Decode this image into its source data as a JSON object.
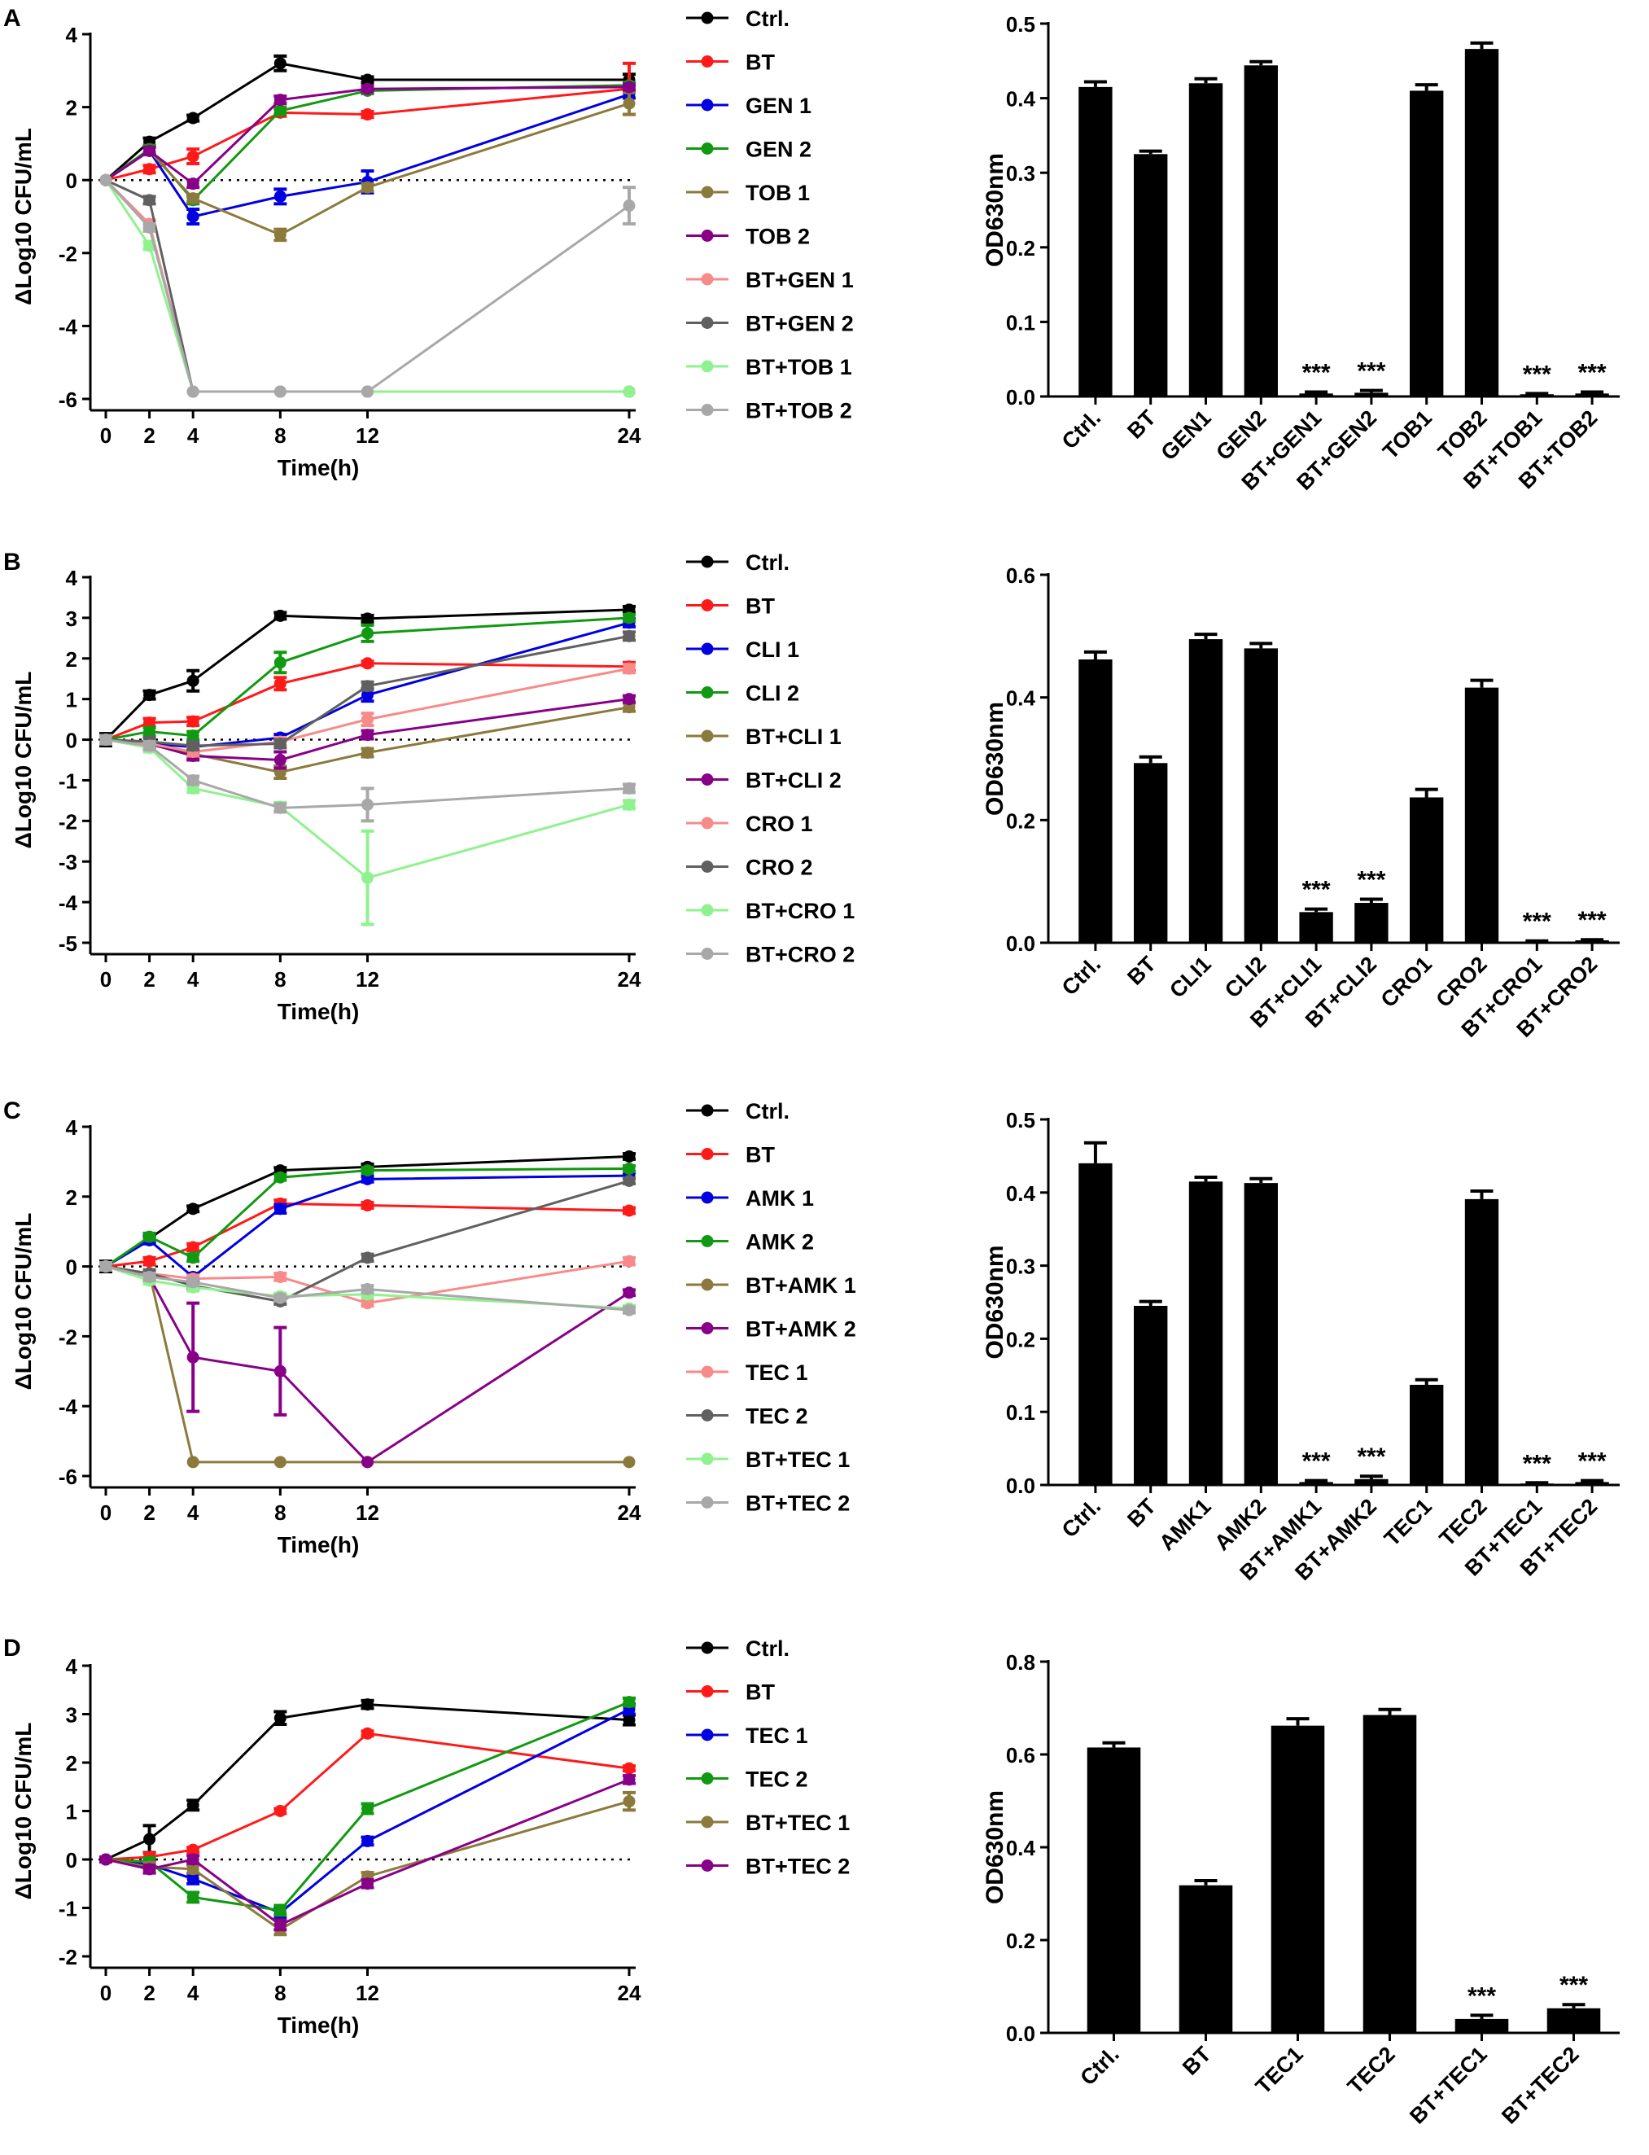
{
  "figure_title": "",
  "chart_data": [
    {
      "panel": "A",
      "type": "line",
      "title": "",
      "xlabel": "Time(h)",
      "ylabel": "ΔLog10 CFU/mL",
      "x": [
        0,
        2,
        4,
        8,
        12,
        24
      ],
      "xticks": [
        0,
        2,
        4,
        8,
        12,
        24
      ],
      "ylim": [
        -6,
        4
      ],
      "yticks": [
        -6,
        -4,
        -2,
        0,
        2,
        4
      ],
      "baseline": 0,
      "grid": false,
      "legend": "right",
      "series": [
        {
          "name": "Ctrl.",
          "color": "#000000",
          "values": [
            0,
            1.05,
            1.7,
            3.2,
            2.75,
            2.75
          ],
          "err": [
            0,
            0.1,
            0.08,
            0.2,
            0.08,
            0.15
          ]
        },
        {
          "name": "BT",
          "color": "#ff1a1a",
          "values": [
            0,
            0.3,
            0.65,
            1.85,
            1.8,
            2.5
          ],
          "err": [
            0,
            0.1,
            0.2,
            0.1,
            0.08,
            0.7
          ]
        },
        {
          "name": "GEN 1",
          "color": "#0000e0",
          "values": [
            0,
            0.8,
            -1.0,
            -0.45,
            -0.05,
            2.35
          ],
          "err": [
            0,
            0.1,
            0.2,
            0.2,
            0.3,
            0.1
          ]
        },
        {
          "name": "GEN 2",
          "color": "#119911",
          "values": [
            0,
            0.85,
            -0.55,
            1.9,
            2.45,
            2.6
          ],
          "err": [
            0,
            0.1,
            0.1,
            0.1,
            0.08,
            0.08
          ]
        },
        {
          "name": "TOB 1",
          "color": "#8b7a3c",
          "values": [
            0,
            0.8,
            -0.5,
            -1.5,
            -0.2,
            2.1
          ],
          "err": [
            0,
            0.1,
            0.1,
            0.15,
            0.1,
            0.3
          ]
        },
        {
          "name": "TOB 2",
          "color": "#880088",
          "values": [
            0,
            0.8,
            -0.1,
            2.2,
            2.5,
            2.55
          ],
          "err": [
            0,
            0.1,
            0.1,
            0.1,
            0.08,
            0.08
          ]
        },
        {
          "name": "BT+GEN 1",
          "color": "#f88a8a",
          "values": [
            0,
            -1.2,
            -5.8,
            -5.8,
            -5.8,
            -5.8
          ],
          "err": [
            0,
            0.1,
            0,
            0,
            0,
            0
          ]
        },
        {
          "name": "BT+GEN 2",
          "color": "#606060",
          "values": [
            0,
            -0.55,
            -5.8,
            -5.8,
            -5.8,
            -5.8
          ],
          "err": [
            0,
            0.1,
            0,
            0,
            0,
            0
          ]
        },
        {
          "name": "BT+TOB 1",
          "color": "#8ff28f",
          "values": [
            0,
            -1.8,
            -5.8,
            -5.8,
            -5.8,
            -5.8
          ],
          "err": [
            0,
            0.1,
            0,
            0,
            0,
            0
          ]
        },
        {
          "name": "BT+TOB 2",
          "color": "#a8a8a8",
          "values": [
            0,
            -1.3,
            -5.8,
            -5.8,
            -5.8,
            -0.7
          ],
          "err": [
            0,
            0.1,
            0,
            0,
            0,
            0.5
          ]
        }
      ]
    },
    {
      "panel": "A",
      "type": "bar",
      "title": "",
      "xlabel": "",
      "ylabel": "OD630nm",
      "ylim": [
        0,
        0.5
      ],
      "yticks": [
        "0.0",
        "0.1",
        "0.2",
        "0.3",
        "0.4",
        "0.5"
      ],
      "categories": [
        "Ctrl.",
        "BT",
        "GEN1",
        "GEN2",
        "BT+GEN1",
        "BT+GEN2",
        "TOB1",
        "TOB2",
        "BT+TOB1",
        "BT+TOB2"
      ],
      "values": [
        0.415,
        0.325,
        0.42,
        0.444,
        0.004,
        0.005,
        0.41,
        0.466,
        0.003,
        0.004
      ],
      "err": [
        0.007,
        0.004,
        0.006,
        0.005,
        0.002,
        0.003,
        0.008,
        0.008,
        0.001,
        0.002
      ],
      "annotations": [
        "",
        "",
        "",
        "",
        "***",
        "***",
        "",
        "",
        "***",
        "***"
      ]
    },
    {
      "panel": "B",
      "type": "line",
      "title": "",
      "xlabel": "Time(h)",
      "ylabel": "ΔLog10 CFU/mL",
      "x": [
        0,
        2,
        4,
        8,
        12,
        24
      ],
      "xticks": [
        0,
        2,
        4,
        8,
        12,
        24
      ],
      "ylim": [
        -5,
        4
      ],
      "yticks": [
        -5,
        -4,
        -3,
        -2,
        -1,
        0,
        1,
        2,
        3,
        4
      ],
      "baseline": 0,
      "grid": false,
      "legend": "right",
      "series": [
        {
          "name": "Ctrl.",
          "color": "#000000",
          "values": [
            0,
            1.1,
            1.45,
            3.05,
            2.98,
            3.2
          ],
          "err": [
            0.15,
            0.1,
            0.25,
            0.08,
            0.08,
            0.08
          ]
        },
        {
          "name": "BT",
          "color": "#ff1a1a",
          "values": [
            0,
            0.42,
            0.45,
            1.38,
            1.88,
            1.8
          ],
          "err": [
            0.1,
            0.1,
            0.1,
            0.15,
            0.05,
            0.1
          ]
        },
        {
          "name": "CLI 1",
          "color": "#0000e0",
          "values": [
            0,
            -0.1,
            -0.18,
            0.05,
            1.1,
            2.88
          ],
          "err": [
            0.1,
            0.1,
            0.1,
            0.08,
            0.15,
            0.1
          ]
        },
        {
          "name": "CLI 2",
          "color": "#119911",
          "values": [
            0,
            0.2,
            0.1,
            1.9,
            2.62,
            3.0
          ],
          "err": [
            0.1,
            0.1,
            0.1,
            0.25,
            0.2,
            0.08
          ]
        },
        {
          "name": "BT+CLI 1",
          "color": "#8b7a3c",
          "values": [
            0,
            -0.12,
            -0.35,
            -0.8,
            -0.32,
            0.8
          ],
          "err": [
            0.1,
            0.1,
            0.1,
            0.15,
            0.1,
            0.1
          ]
        },
        {
          "name": "BT+CLI 2",
          "color": "#880088",
          "values": [
            0,
            -0.1,
            -0.4,
            -0.5,
            0.12,
            1.0
          ],
          "err": [
            0.1,
            0.1,
            0.1,
            0.2,
            0.1,
            0.08
          ]
        },
        {
          "name": "CRO 1",
          "color": "#f88a8a",
          "values": [
            0,
            -0.1,
            -0.3,
            -0.05,
            0.5,
            1.75
          ],
          "err": [
            0.1,
            0.1,
            0.1,
            0.1,
            0.15,
            0.1
          ]
        },
        {
          "name": "CRO 2",
          "color": "#606060",
          "values": [
            0,
            -0.05,
            -0.15,
            -0.1,
            1.32,
            2.55
          ],
          "err": [
            0.1,
            0.1,
            0.1,
            0.1,
            0.1,
            0.1
          ]
        },
        {
          "name": "BT+CRO 1",
          "color": "#8ff28f",
          "values": [
            0,
            -0.2,
            -1.2,
            -1.65,
            -3.4,
            -1.6
          ],
          "err": [
            0.1,
            0.1,
            0.1,
            0.1,
            1.15,
            0.1
          ]
        },
        {
          "name": "BT+CRO 2",
          "color": "#a8a8a8",
          "values": [
            0,
            -0.15,
            -1.0,
            -1.68,
            -1.6,
            -1.2
          ],
          "err": [
            0.1,
            0.1,
            0.1,
            0.1,
            0.4,
            0.1
          ]
        }
      ]
    },
    {
      "panel": "B",
      "type": "bar",
      "title": "",
      "xlabel": "",
      "ylabel": "OD630nm",
      "ylim": [
        0,
        0.6
      ],
      "yticks": [
        "0.0",
        "0.2",
        "0.4",
        "0.6"
      ],
      "categories": [
        "Ctrl.",
        "BT",
        "CLI1",
        "CLI2",
        "BT+CLI1",
        "BT+CLI2",
        "CRO1",
        "CRO2",
        "BT+CRO1",
        "BT+CRO2"
      ],
      "values": [
        0.462,
        0.293,
        0.495,
        0.48,
        0.05,
        0.065,
        0.237,
        0.416,
        0.002,
        0.004
      ],
      "err": [
        0.012,
        0.01,
        0.008,
        0.008,
        0.005,
        0.006,
        0.013,
        0.012,
        0.001,
        0.001
      ],
      "annotations": [
        "",
        "",
        "",
        "",
        "***",
        "***",
        "",
        "",
        "***",
        "***"
      ]
    },
    {
      "panel": "C",
      "type": "line",
      "title": "",
      "xlabel": "Time(h)",
      "ylabel": "ΔLog10 CFU/mL",
      "x": [
        0,
        2,
        4,
        8,
        12,
        24
      ],
      "xticks": [
        0,
        2,
        4,
        8,
        12,
        24
      ],
      "ylim": [
        -6,
        4
      ],
      "yticks": [
        -6,
        -4,
        -2,
        0,
        2,
        4
      ],
      "baseline": 0,
      "grid": false,
      "legend": "right",
      "series": [
        {
          "name": "Ctrl.",
          "color": "#000000",
          "values": [
            0,
            0.8,
            1.65,
            2.75,
            2.85,
            3.15
          ],
          "err": [
            0.15,
            0.1,
            0.08,
            0.08,
            0.08,
            0.08
          ]
        },
        {
          "name": "BT",
          "color": "#ff1a1a",
          "values": [
            0,
            0.15,
            0.55,
            1.8,
            1.75,
            1.6
          ],
          "err": [
            0.1,
            0.1,
            0.1,
            0.1,
            0.08,
            0.08
          ]
        },
        {
          "name": "AMK 1",
          "color": "#0000e0",
          "values": [
            0,
            0.75,
            -0.3,
            1.65,
            2.5,
            2.6
          ],
          "err": [
            0.1,
            0.1,
            0.1,
            0.12,
            0.08,
            0.08
          ]
        },
        {
          "name": "AMK 2",
          "color": "#119911",
          "values": [
            0,
            0.85,
            0.25,
            2.55,
            2.75,
            2.8
          ],
          "err": [
            0.1,
            0.1,
            0.1,
            0.08,
            0.08,
            0.08
          ]
        },
        {
          "name": "BT+AMK 1",
          "color": "#8b7a3c",
          "values": [
            0,
            -0.2,
            -5.6,
            -5.6,
            -5.6,
            -5.6
          ],
          "err": [
            0.1,
            0.1,
            0,
            0,
            0,
            0
          ]
        },
        {
          "name": "BT+AMK 2",
          "color": "#880088",
          "values": [
            0,
            -0.3,
            -2.6,
            -3.0,
            -5.6,
            -0.75
          ],
          "err": [
            0.1,
            0.1,
            1.55,
            1.25,
            0,
            0.08
          ]
        },
        {
          "name": "TEC 1",
          "color": "#f88a8a",
          "values": [
            0,
            -0.2,
            -0.35,
            -0.3,
            -1.05,
            0.15
          ],
          "err": [
            0.1,
            0.1,
            0.1,
            0.1,
            0.08,
            0.1
          ]
        },
        {
          "name": "TEC 2",
          "color": "#606060",
          "values": [
            0,
            -0.2,
            -0.55,
            -1.0,
            0.25,
            2.45
          ],
          "err": [
            0.1,
            0.1,
            0.1,
            0.08,
            0.1,
            0.08
          ]
        },
        {
          "name": "BT+TEC 1",
          "color": "#8ff28f",
          "values": [
            0,
            -0.4,
            -0.6,
            -0.85,
            -0.8,
            -1.2
          ],
          "err": [
            0.1,
            0.1,
            0.1,
            0.08,
            0.1,
            0.08
          ]
        },
        {
          "name": "BT+TEC 2",
          "color": "#a8a8a8",
          "values": [
            0,
            -0.3,
            -0.45,
            -0.9,
            -0.65,
            -1.25
          ],
          "err": [
            0.1,
            0.1,
            0.1,
            0.08,
            0.1,
            0.08
          ]
        }
      ]
    },
    {
      "panel": "C",
      "type": "bar",
      "title": "",
      "xlabel": "",
      "ylabel": "OD630nm",
      "ylim": [
        0,
        0.5
      ],
      "yticks": [
        "0.0",
        "0.1",
        "0.2",
        "0.3",
        "0.4",
        "0.5"
      ],
      "categories": [
        "Ctrl.",
        "BT",
        "AMK1",
        "AMK2",
        "BT+AMK1",
        "BT+AMK2",
        "TEC1",
        "TEC2",
        "BT+TEC1",
        "BT+TEC2"
      ],
      "values": [
        0.44,
        0.245,
        0.415,
        0.413,
        0.004,
        0.008,
        0.137,
        0.391,
        0.002,
        0.004
      ],
      "err": [
        0.028,
        0.006,
        0.006,
        0.006,
        0.002,
        0.004,
        0.007,
        0.011,
        0.001,
        0.002
      ],
      "annotations": [
        "",
        "",
        "",
        "",
        "***",
        "***",
        "",
        "",
        "***",
        "***"
      ]
    },
    {
      "panel": "D",
      "type": "line",
      "title": "",
      "xlabel": "Time(h)",
      "ylabel": "ΔLog10 CFU/mL",
      "x": [
        0,
        2,
        4,
        8,
        12,
        24
      ],
      "xticks": [
        0,
        2,
        4,
        8,
        12,
        24
      ],
      "ylim": [
        -2,
        4
      ],
      "yticks": [
        -2,
        -1,
        0,
        1,
        2,
        3,
        4
      ],
      "baseline": 0,
      "grid": false,
      "legend": "right",
      "series": [
        {
          "name": "Ctrl.",
          "color": "#000000",
          "values": [
            0,
            0.42,
            1.12,
            2.92,
            3.2,
            2.88
          ],
          "err": [
            0.05,
            0.28,
            0.1,
            0.13,
            0.08,
            0.1
          ]
        },
        {
          "name": "BT",
          "color": "#ff1a1a",
          "values": [
            0,
            0.05,
            0.2,
            1.0,
            2.6,
            1.88
          ],
          "err": [
            0.05,
            0.08,
            0.05,
            0.05,
            0.05,
            0.05
          ]
        },
        {
          "name": "TEC 1",
          "color": "#0000e0",
          "values": [
            0,
            -0.1,
            -0.4,
            -1.1,
            0.38,
            3.1
          ],
          "err": [
            0.05,
            0.08,
            0.1,
            0.1,
            0.08,
            0.1
          ]
        },
        {
          "name": "TEC 2",
          "color": "#119911",
          "values": [
            0,
            -0.05,
            -0.78,
            -1.05,
            1.05,
            3.25
          ],
          "err": [
            0.05,
            0.08,
            0.1,
            0.1,
            0.1,
            0.08
          ]
        },
        {
          "name": "BT+TEC 1",
          "color": "#8b7a3c",
          "values": [
            0,
            -0.15,
            -0.2,
            -1.45,
            -0.35,
            1.2
          ],
          "err": [
            0.05,
            0.08,
            0.08,
            0.1,
            0.08,
            0.18
          ]
        },
        {
          "name": "BT+TEC 2",
          "color": "#880088",
          "values": [
            0,
            -0.2,
            0.0,
            -1.35,
            -0.5,
            1.65
          ],
          "err": [
            0.05,
            0.08,
            0.08,
            0.1,
            0.08,
            0.08
          ]
        }
      ]
    },
    {
      "panel": "D",
      "type": "bar",
      "title": "",
      "xlabel": "",
      "ylabel": "OD630nm",
      "ylim": [
        0,
        0.8
      ],
      "yticks": [
        "0.0",
        "0.2",
        "0.4",
        "0.6",
        "0.8"
      ],
      "categories": [
        "Ctrl.",
        "BT",
        "TEC1",
        "TEC2",
        "BT+TEC1",
        "BT+TEC2"
      ],
      "values": [
        0.615,
        0.318,
        0.662,
        0.685,
        0.03,
        0.053
      ],
      "err": [
        0.01,
        0.01,
        0.015,
        0.012,
        0.008,
        0.008
      ],
      "annotations": [
        "",
        "",
        "",
        "",
        "***",
        "***"
      ]
    }
  ]
}
